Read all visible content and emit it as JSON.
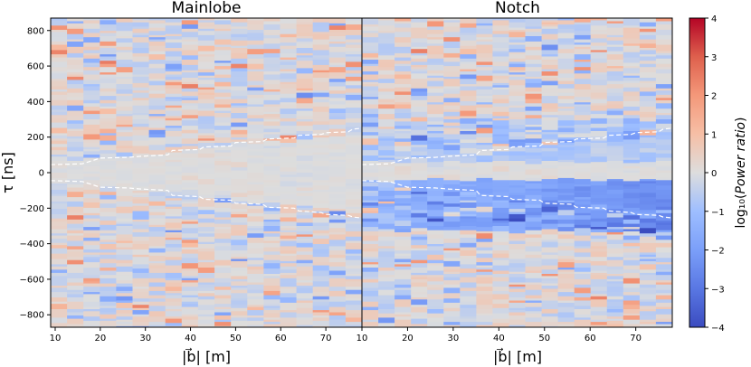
{
  "chart_data": {
    "type": "heatmap",
    "panels": [
      {
        "title": "Mainlobe",
        "xlabel": "|b⃗| [m]",
        "ylabel": "τ [ns]",
        "xlim": [
          9,
          78
        ],
        "ylim": [
          -870,
          870
        ],
        "xticks": [
          10,
          20,
          30,
          40,
          50,
          60,
          70
        ],
        "yticks": [
          800,
          600,
          400,
          200,
          0,
          -200,
          -400,
          -600,
          -800
        ],
        "upper_dashed_line": [
          [
            9,
            45
          ],
          [
            16,
            50
          ],
          [
            20,
            82
          ],
          [
            26,
            86
          ],
          [
            29,
            92
          ],
          [
            35,
            100
          ],
          [
            36,
            125
          ],
          [
            42,
            130
          ],
          [
            43,
            145
          ],
          [
            49,
            150
          ],
          [
            50,
            170
          ],
          [
            56,
            175
          ],
          [
            57,
            190
          ],
          [
            63,
            195
          ],
          [
            64,
            210
          ],
          [
            69,
            215
          ],
          [
            70,
            225
          ],
          [
            75,
            230
          ],
          [
            76,
            245
          ],
          [
            78,
            250
          ]
        ],
        "lower_dashed_line": [
          [
            9,
            -45
          ],
          [
            16,
            -50
          ],
          [
            20,
            -82
          ],
          [
            26,
            -86
          ],
          [
            29,
            -92
          ],
          [
            35,
            -100
          ],
          [
            36,
            -128
          ],
          [
            42,
            -135
          ],
          [
            43,
            -150
          ],
          [
            49,
            -155
          ],
          [
            50,
            -172
          ],
          [
            56,
            -178
          ],
          [
            57,
            -195
          ],
          [
            63,
            -200
          ],
          [
            64,
            -215
          ],
          [
            69,
            -225
          ],
          [
            70,
            -235
          ],
          [
            75,
            -240
          ],
          [
            76,
            -250
          ],
          [
            78,
            -255
          ]
        ]
      },
      {
        "title": "Notch",
        "xlabel": "|b⃗| [m]",
        "xlim": [
          10,
          78
        ],
        "ylim": [
          -870,
          870
        ],
        "xticks": [
          10,
          20,
          30,
          40,
          50,
          60,
          70
        ],
        "upper_dashed_line": [
          [
            10,
            45
          ],
          [
            16,
            50
          ],
          [
            20,
            82
          ],
          [
            26,
            86
          ],
          [
            29,
            92
          ],
          [
            35,
            100
          ],
          [
            36,
            125
          ],
          [
            42,
            130
          ],
          [
            43,
            145
          ],
          [
            49,
            150
          ],
          [
            50,
            170
          ],
          [
            56,
            175
          ],
          [
            57,
            190
          ],
          [
            63,
            195
          ],
          [
            64,
            210
          ],
          [
            69,
            215
          ],
          [
            70,
            225
          ],
          [
            75,
            230
          ],
          [
            76,
            245
          ],
          [
            78,
            250
          ]
        ],
        "lower_dashed_line": [
          [
            10,
            -45
          ],
          [
            16,
            -50
          ],
          [
            20,
            -82
          ],
          [
            26,
            -86
          ],
          [
            29,
            -92
          ],
          [
            35,
            -100
          ],
          [
            36,
            -128
          ],
          [
            42,
            -135
          ],
          [
            43,
            -150
          ],
          [
            49,
            -155
          ],
          [
            50,
            -172
          ],
          [
            56,
            -178
          ],
          [
            57,
            -195
          ],
          [
            63,
            -200
          ],
          [
            64,
            -215
          ],
          [
            69,
            -225
          ],
          [
            70,
            -235
          ],
          [
            75,
            -240
          ],
          [
            76,
            -250
          ],
          [
            78,
            -255
          ]
        ]
      }
    ],
    "colorbar": {
      "label": "log₁₀(Power ratio)",
      "label_prefix": "log₁₀(",
      "label_italic": "Power ratio",
      "label_suffix": ")",
      "range": [
        -4,
        4
      ],
      "ticks": [
        4,
        3,
        2,
        1,
        0,
        -1,
        -2,
        -3,
        -4
      ],
      "colormap": "coolwarm"
    },
    "colors": {
      "min": "#3b4cc0",
      "mid": "#dddddd",
      "max": "#b40426",
      "dashed_line": "#ffffff"
    }
  }
}
